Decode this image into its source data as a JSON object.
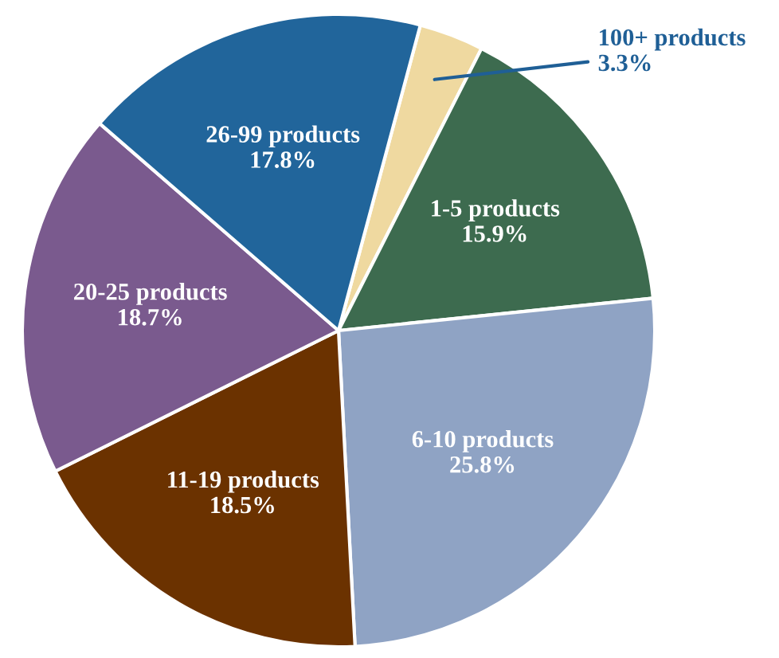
{
  "chart_data": {
    "type": "pie",
    "categories": [
      "100+ products",
      "1-5 products",
      "6-10 products",
      "11-19 products",
      "20-25 products",
      "26-99 products"
    ],
    "values": [
      3.3,
      15.9,
      25.8,
      18.5,
      18.7,
      17.8
    ],
    "value_labels": [
      "3.3%",
      "15.9%",
      "25.8%",
      "18.5%",
      "18.7%",
      "17.8%"
    ],
    "colors": [
      "#efd9a0",
      "#3d6b4f",
      "#8fa3c4",
      "#6b3200",
      "#7a5a8e",
      "#21659b"
    ]
  }
}
